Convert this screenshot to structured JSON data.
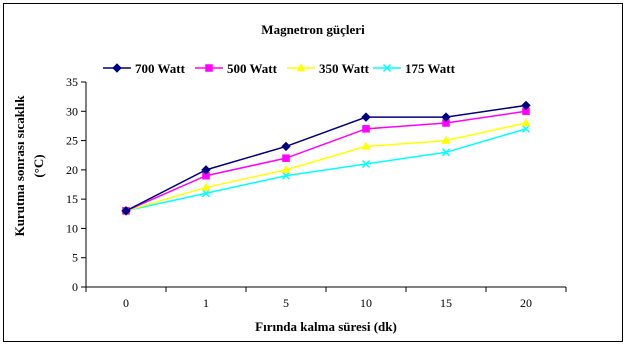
{
  "chart_data": {
    "type": "line",
    "title": "Magnetron güçleri",
    "xlabel": "Fırında kalma süresi (dk)",
    "ylabel_line1": "Kurutma sonrası sıcaklık",
    "ylabel_line2": "(°C)",
    "categories": [
      "0",
      "1",
      "5",
      "10",
      "15",
      "20"
    ],
    "ylim": [
      0,
      35
    ],
    "yticks": [
      0,
      5,
      10,
      15,
      20,
      25,
      30,
      35
    ],
    "legend_position": "top",
    "grid": false,
    "series": [
      {
        "name": "700 Watt",
        "values": [
          13,
          20,
          24,
          29,
          29,
          31
        ],
        "color": "#000080",
        "marker": "diamond"
      },
      {
        "name": "500 Watt",
        "values": [
          13,
          19,
          22,
          27,
          28,
          30
        ],
        "color": "#ff00ff",
        "marker": "square"
      },
      {
        "name": "350 Watt",
        "values": [
          13,
          17,
          20,
          24,
          25,
          28
        ],
        "color": "#ffff00",
        "marker": "triangle"
      },
      {
        "name": "175 Watt",
        "values": [
          13,
          16,
          19,
          21,
          23,
          27
        ],
        "color": "#00ffff",
        "marker": "x"
      }
    ]
  }
}
